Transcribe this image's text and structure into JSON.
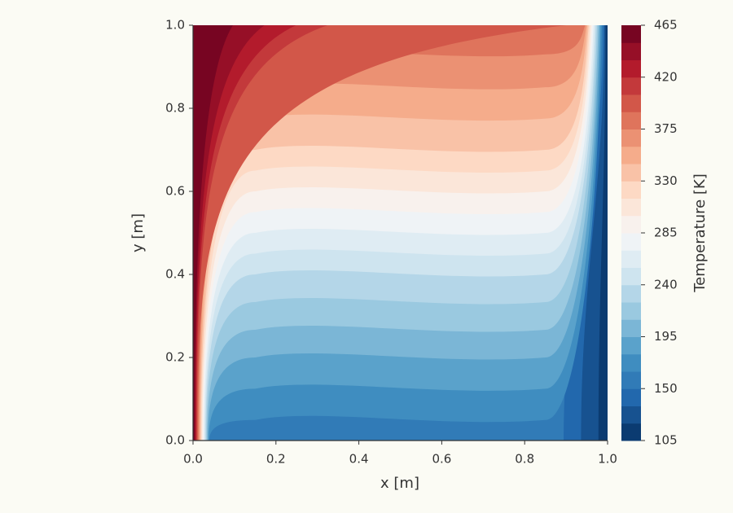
{
  "chart_data": {
    "type": "contour",
    "xlabel": "x [m]",
    "ylabel": "y [m]",
    "xlim": [
      0,
      1
    ],
    "ylim": [
      0,
      1
    ],
    "xticks": [
      {
        "value": 0,
        "label": "0.0"
      },
      0.2,
      0.4,
      0.6,
      0.8,
      {
        "value": 1,
        "label": "1.0"
      }
    ],
    "yticks": [
      {
        "value": 0,
        "label": "0.0"
      },
      0.2,
      0.4,
      0.6,
      0.8,
      {
        "value": 1,
        "label": "1.0"
      }
    ],
    "colormap": "RdBu_r",
    "levels": [
      105,
      120,
      135,
      150,
      165,
      180,
      195,
      210,
      225,
      240,
      255,
      270,
      285,
      300,
      315,
      330,
      345,
      360,
      375,
      390,
      405,
      420,
      435,
      450,
      465
    ],
    "colorbar": {
      "label": "Temperature [K]",
      "ticks": [
        105,
        150,
        195,
        240,
        285,
        330,
        375,
        420,
        465
      ]
    }
  }
}
